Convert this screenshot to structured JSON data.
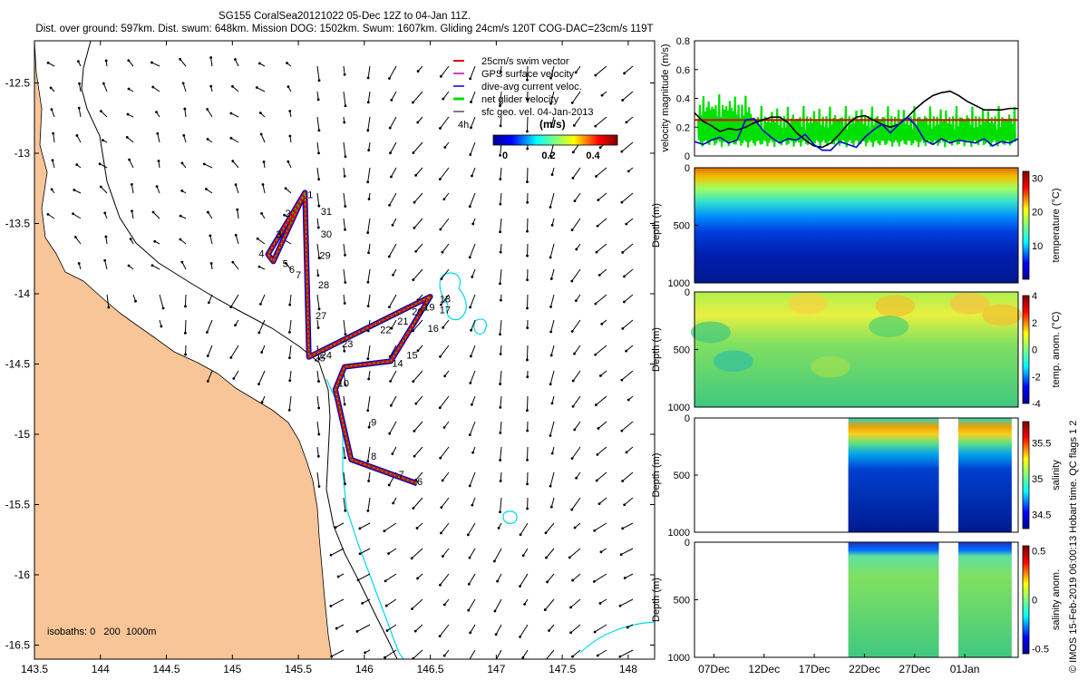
{
  "title_line1": "SG155 CoralSea20121022 05-Dec 12Z to 04-Jan 11Z.",
  "title_line2": "Dist. over ground: 597km. Dist. swum: 648km. Mission DOG: 1502km. Swum: 1607km. Gliding 24cm/s 120T COG-DAC=23cm/s 119T",
  "credit": "© IMOS 15-Feb-2019 06:00:13 Hobart time. QC flags 1  2",
  "colors": {
    "land": "#f7c598",
    "coast": "#000000",
    "isobath200": "#000000",
    "isobath1000": "#00d8e8",
    "swim": "#e00000",
    "dac": "#0000d0",
    "glider": "#00e000",
    "gps": "#c000c0",
    "refline": "#e00000"
  },
  "chart_data": [
    {
      "type": "scatter",
      "name": "map",
      "xlim": [
        143.5,
        148.2
      ],
      "ylim": [
        -16.6,
        -12.2
      ],
      "xticks": [
        "143.5",
        "144",
        "144.5",
        "145",
        "145.5",
        "146",
        "146.5",
        "147",
        "147.5",
        "148"
      ],
      "yticks": [
        "-12.5",
        "-13",
        "-13.5",
        "-14",
        "-14.5",
        "-15",
        "-15.5",
        "-16",
        "-16.5"
      ],
      "legend": [
        "25cm/s swim vector",
        "GPS surface velocity",
        "dive-avg current veloc.",
        "net glider velocity",
        "sfc geo. vel. 04-Jan-2013"
      ],
      "legend_extra": "4h",
      "colorbar": {
        "title": "(m/s)",
        "ticks": [
          "0",
          "0.2",
          "0.4"
        ],
        "range": [
          0,
          0.5
        ]
      },
      "isobaths_label": "isobaths: 0   200  1000m",
      "track": [
        [
          145.55,
          -13.28
        ],
        [
          145.27,
          -13.72
        ],
        [
          145.31,
          -13.77
        ],
        [
          145.55,
          -13.28
        ],
        [
          145.58,
          -14.45
        ],
        [
          146.5,
          -14.02
        ],
        [
          146.2,
          -14.48
        ],
        [
          145.85,
          -14.52
        ],
        [
          145.78,
          -14.68
        ],
        [
          145.9,
          -15.18
        ],
        [
          146.4,
          -15.35
        ]
      ],
      "day_labels": [
        {
          "t": "1",
          "lon": 145.57,
          "lat": -13.32
        },
        {
          "t": "2",
          "lon": 145.4,
          "lat": -13.45
        },
        {
          "t": "3",
          "lon": 145.33,
          "lat": -13.6
        },
        {
          "t": "4",
          "lon": 145.2,
          "lat": -13.74
        },
        {
          "t": "5",
          "lon": 145.38,
          "lat": -13.81
        },
        {
          "t": "6",
          "lon": 145.43,
          "lat": -13.85
        },
        {
          "t": "7",
          "lon": 145.48,
          "lat": -13.89
        },
        {
          "t": "8",
          "lon": 146.05,
          "lat": -15.18
        },
        {
          "t": "7",
          "lon": 146.26,
          "lat": -15.31
        },
        {
          "t": "6",
          "lon": 146.4,
          "lat": -15.36
        },
        {
          "t": "9",
          "lon": 146.05,
          "lat": -14.94
        },
        {
          "t": "10",
          "lon": 145.8,
          "lat": -14.66
        },
        {
          "t": "14",
          "lon": 146.21,
          "lat": -14.52
        },
        {
          "t": "15",
          "lon": 146.32,
          "lat": -14.46
        },
        {
          "t": "16",
          "lon": 146.48,
          "lat": -14.27
        },
        {
          "t": "17",
          "lon": 146.57,
          "lat": -14.14
        },
        {
          "t": "18",
          "lon": 146.57,
          "lat": -14.06
        },
        {
          "t": "19",
          "lon": 146.45,
          "lat": -14.12
        },
        {
          "t": "20",
          "lon": 146.36,
          "lat": -14.15
        },
        {
          "t": "21",
          "lon": 146.25,
          "lat": -14.22
        },
        {
          "t": "22",
          "lon": 146.12,
          "lat": -14.28
        },
        {
          "t": "23",
          "lon": 145.83,
          "lat": -14.38
        },
        {
          "t": "24",
          "lon": 145.67,
          "lat": -14.46
        },
        {
          "t": "25",
          "lon": 145.62,
          "lat": -14.48
        },
        {
          "t": "27",
          "lon": 145.63,
          "lat": -14.18
        },
        {
          "t": "28",
          "lon": 145.65,
          "lat": -13.96
        },
        {
          "t": "29",
          "lon": 145.66,
          "lat": -13.75
        },
        {
          "t": "30",
          "lon": 145.67,
          "lat": -13.6
        },
        {
          "t": "31",
          "lon": 145.67,
          "lat": -13.44
        }
      ]
    },
    {
      "type": "line",
      "name": "velocity",
      "ylabel": "velocity magnitude (m/s)",
      "ylim": [
        0,
        0.8
      ],
      "yticks": [
        "0",
        "0.2",
        "0.4",
        "0.6",
        "0.8"
      ],
      "ref_value": 0.25,
      "series": [
        {
          "key": "black",
          "values": [
            0.3,
            0.24,
            0.21,
            0.17,
            0.19,
            0.18,
            0.2,
            0.23,
            0.25,
            0.27,
            0.27,
            0.23,
            0.16,
            0.11,
            0.07,
            0.06,
            0.09,
            0.15,
            0.22,
            0.27,
            0.28,
            0.25,
            0.22,
            0.2,
            0.22,
            0.27,
            0.33,
            0.38,
            0.42,
            0.44,
            0.45,
            0.42,
            0.38,
            0.35,
            0.32,
            0.32,
            0.32,
            0.33,
            0.33
          ]
        },
        {
          "key": "blue",
          "values": [
            0.1,
            0.08,
            0.11,
            0.13,
            0.09,
            0.11,
            0.25,
            0.26,
            0.18,
            0.13,
            0.09,
            0.12,
            0.11,
            0.15,
            0.08,
            0.04,
            0.04,
            0.1,
            0.08,
            0.06,
            0.13,
            0.18,
            0.22,
            0.16,
            0.22,
            0.27,
            0.21,
            0.11,
            0.08,
            0.12,
            0.09,
            0.11,
            0.1,
            0.09,
            0.12,
            0.07,
            0.1,
            0.09,
            0.12
          ]
        }
      ]
    },
    {
      "type": "heatmap",
      "name": "temperature",
      "ylabel": "Depth (m)",
      "cbar_label": "temperature (°C)",
      "cbar_ticks": [
        "10",
        "20",
        "30"
      ],
      "cbar_range": [
        0,
        32
      ],
      "depth_ticks": [
        "0",
        "500",
        "1000"
      ],
      "data_from": 0.0,
      "data_to": 1.0
    },
    {
      "type": "heatmap",
      "name": "temp-anom",
      "ylabel": "Depth (m)",
      "cbar_label": "temp. anom. (°C)",
      "cbar_ticks": [
        "-4",
        "-2",
        "0",
        "2",
        "4"
      ],
      "cbar_range": [
        -4,
        4
      ],
      "depth_ticks": [
        "0",
        "500",
        "1000"
      ],
      "data_from": 0.0,
      "data_to": 1.0
    },
    {
      "type": "heatmap",
      "name": "salinity",
      "ylabel": "Depth (m)",
      "cbar_label": "salinity",
      "cbar_ticks": [
        "34.5",
        "35",
        "35.5"
      ],
      "cbar_range": [
        34.3,
        35.8
      ],
      "depth_ticks": [
        "0",
        "500",
        "1000"
      ],
      "segments": [
        [
          0.475,
          0.755
        ],
        [
          0.815,
          0.98
        ]
      ]
    },
    {
      "type": "heatmap",
      "name": "salinity-anom",
      "ylabel": "Depth (m)",
      "cbar_label": "salinity anom.",
      "cbar_ticks": [
        "-0.5",
        "0",
        "0.5"
      ],
      "cbar_range": [
        -0.55,
        0.55
      ],
      "depth_ticks": [
        "0",
        "500",
        "1000"
      ],
      "segments": [
        [
          0.475,
          0.755
        ],
        [
          0.815,
          0.98
        ]
      ],
      "xticks": [
        "07Dec",
        "12Dec",
        "17Dec",
        "22Dec",
        "27Dec",
        "01Jan"
      ]
    }
  ]
}
